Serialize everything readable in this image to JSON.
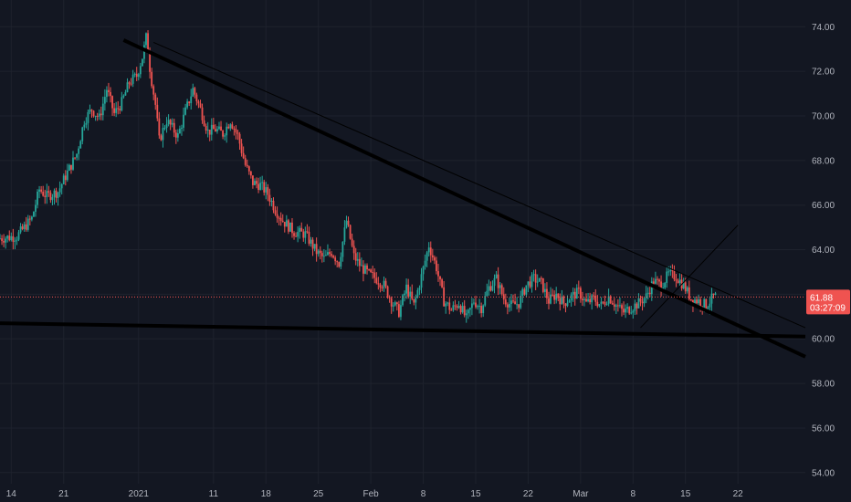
{
  "chart_data": {
    "type": "candlestick",
    "x_axis": {
      "ticks": [
        {
          "label": "14",
          "day": -5
        },
        {
          "label": "21",
          "day": 2
        },
        {
          "label": "2021",
          "day": 12
        },
        {
          "label": "11",
          "day": 22
        },
        {
          "label": "18",
          "day": 29
        },
        {
          "label": "25",
          "day": 36
        },
        {
          "label": "Feb",
          "day": 43
        },
        {
          "label": "8",
          "day": 50
        },
        {
          "label": "15",
          "day": 57
        },
        {
          "label": "22",
          "day": 64
        },
        {
          "label": "Mar",
          "day": 71
        },
        {
          "label": "8",
          "day": 78
        },
        {
          "label": "15",
          "day": 85
        },
        {
          "label": "22",
          "day": 92
        }
      ],
      "range_days": [
        -6.5,
        101
      ]
    },
    "y_axis": {
      "ticks": [
        "74.00",
        "72.00",
        "70.00",
        "68.00",
        "66.00",
        "64.00",
        "62.00",
        "60.00",
        "58.00",
        "56.00",
        "54.00"
      ],
      "range": [
        53.5,
        75.2
      ]
    },
    "last_price": {
      "value": 61.88,
      "label": "61.88",
      "countdown": "03:27:09"
    },
    "colors": {
      "up": "#26a69a",
      "down": "#ef5350",
      "background": "#131722",
      "grid": "#1e222d",
      "axis_text": "#b2b5be",
      "trendline": "#000000",
      "price_line": "#ef5350"
    },
    "price_path": [
      [
        -6.5,
        64.5
      ],
      [
        -4,
        64.6
      ],
      [
        -2,
        65.4
      ],
      [
        -1,
        66.7
      ],
      [
        0,
        66.4
      ],
      [
        1.5,
        66.6
      ],
      [
        2.5,
        67.3
      ],
      [
        4,
        68.3
      ],
      [
        5,
        69.8
      ],
      [
        6,
        70.3
      ],
      [
        7,
        69.9
      ],
      [
        8,
        71.2
      ],
      [
        9,
        70.1
      ],
      [
        10,
        70.6
      ],
      [
        11,
        71.5
      ],
      [
        12,
        71.8
      ],
      [
        12.8,
        72.7
      ],
      [
        13.3,
        73.6
      ],
      [
        13.8,
        72.0
      ],
      [
        14.5,
        70.5
      ],
      [
        15,
        68.9
      ],
      [
        16,
        69.8
      ],
      [
        17.5,
        69.1
      ],
      [
        18.5,
        70.2
      ],
      [
        19.5,
        71.2
      ],
      [
        20.5,
        70.3
      ],
      [
        21.5,
        69.3
      ],
      [
        22.5,
        69.4
      ],
      [
        23.5,
        69.2
      ],
      [
        24.5,
        69.8
      ],
      [
        25.5,
        69.1
      ],
      [
        26.5,
        67.8
      ],
      [
        27.5,
        67.0
      ],
      [
        28.5,
        66.9
      ],
      [
        29.5,
        66.5
      ],
      [
        30.5,
        65.8
      ],
      [
        31.5,
        65.3
      ],
      [
        33,
        64.8
      ],
      [
        34.5,
        64.7
      ],
      [
        36,
        63.9
      ],
      [
        37,
        63.6
      ],
      [
        38,
        63.9
      ],
      [
        39,
        63.4
      ],
      [
        40,
        65.3
      ],
      [
        41,
        63.7
      ],
      [
        42,
        63.2
      ],
      [
        43,
        62.9
      ],
      [
        44,
        62.7
      ],
      [
        45,
        62.4
      ],
      [
        46,
        61.7
      ],
      [
        47,
        61.2
      ],
      [
        48,
        62.3
      ],
      [
        49,
        61.5
      ],
      [
        50,
        62.8
      ],
      [
        51,
        64.2
      ],
      [
        52,
        63.2
      ],
      [
        53,
        61.7
      ],
      [
        54,
        61.3
      ],
      [
        55,
        61.6
      ],
      [
        56,
        60.9
      ],
      [
        57,
        61.7
      ],
      [
        58,
        61.4
      ],
      [
        59,
        62.3
      ],
      [
        60,
        62.7
      ],
      [
        61,
        61.8
      ],
      [
        62,
        61.5
      ],
      [
        63,
        61.6
      ],
      [
        64,
        62.4
      ],
      [
        65,
        62.7
      ],
      [
        66,
        62.5
      ],
      [
        67,
        61.7
      ],
      [
        68,
        62.0
      ],
      [
        69,
        61.6
      ],
      [
        70,
        61.9
      ],
      [
        71,
        62.1
      ],
      [
        72,
        61.6
      ],
      [
        73,
        61.8
      ],
      [
        74,
        61.5
      ],
      [
        75,
        61.9
      ],
      [
        76,
        61.5
      ],
      [
        77,
        61.2
      ],
      [
        78,
        61.4
      ],
      [
        79,
        61.6
      ],
      [
        80,
        61.9
      ],
      [
        81,
        62.6
      ],
      [
        82,
        62.4
      ],
      [
        83,
        62.9
      ],
      [
        84,
        62.8
      ],
      [
        85,
        62.4
      ],
      [
        86,
        61.8
      ],
      [
        87,
        61.7
      ],
      [
        88,
        61.5
      ],
      [
        89,
        61.88
      ]
    ],
    "trendlines": [
      {
        "name": "upper-resistance-thick",
        "x1": 10,
        "y1": 73.4,
        "x2": 101,
        "y2": 59.2,
        "width": 4
      },
      {
        "name": "upper-resistance-thin",
        "x1": 14,
        "y1": 73.3,
        "x2": 101,
        "y2": 60.5,
        "width": 1
      },
      {
        "name": "support-line",
        "x1": -6.5,
        "y1": 60.7,
        "x2": 101,
        "y2": 60.1,
        "width": 4
      },
      {
        "name": "rising-channel-line",
        "x1": 79,
        "y1": 60.5,
        "x2": 92,
        "y2": 65.1,
        "width": 1
      }
    ]
  }
}
